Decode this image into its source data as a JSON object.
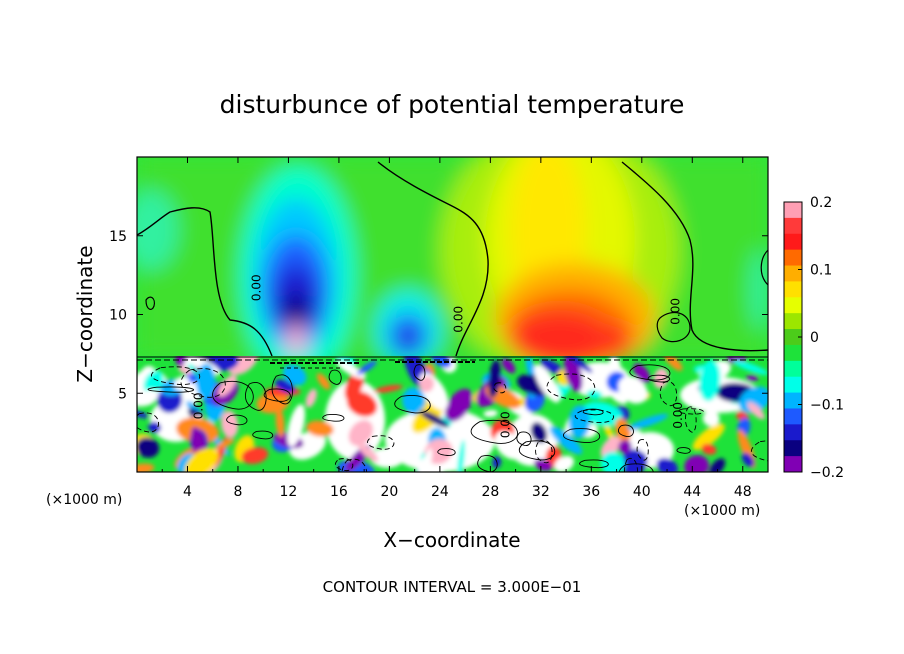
{
  "chart_data": {
    "type": "heatmap",
    "title": "disturbunce of potential temperature",
    "xlabel": "X−coordinate",
    "ylabel": "Z−coordinate",
    "x_unit_left": "(×1000 m)",
    "x_unit_right": "(×1000 m)",
    "footer": "CONTOUR INTERVAL = 3.000E−01",
    "xlim": [
      0,
      50
    ],
    "ylim": [
      0,
      20
    ],
    "x_ticks": [
      "4",
      "8",
      "12",
      "16",
      "20",
      "24",
      "28",
      "32",
      "36",
      "40",
      "44",
      "48"
    ],
    "x_tick_values": [
      4,
      8,
      12,
      16,
      20,
      24,
      28,
      32,
      36,
      40,
      44,
      48
    ],
    "y_ticks": [
      "5",
      "10",
      "15"
    ],
    "y_tick_values": [
      5,
      10,
      15
    ],
    "contour_labels": [
      {
        "text": "0.00",
        "x": 9.8,
        "z": 11.7
      },
      {
        "text": "0.00",
        "x": 25.8,
        "z": 9.7
      },
      {
        "text": "0.00",
        "x": 43.0,
        "z": 10.2
      },
      {
        "text": "0.00",
        "x": 5.2,
        "z": 4.2
      },
      {
        "text": "0.00",
        "x": 29.5,
        "z": 3.0
      },
      {
        "text": "0.00",
        "x": 43.2,
        "z": 3.6
      }
    ],
    "colorbar": {
      "min": -0.2,
      "max": 0.2,
      "ticks": [
        "0.2",
        "0.1",
        "0",
        "−0.1",
        "−0.2"
      ],
      "tick_values": [
        0.2,
        0.1,
        0,
        -0.1,
        -0.2
      ],
      "colors": [
        "#ff9fb4",
        "#ff3a3a",
        "#ff1a1a",
        "#ff6a00",
        "#ffae00",
        "#ffe000",
        "#e6ff00",
        "#9ce600",
        "#4ccc1a",
        "#1ee23a",
        "#00ff9a",
        "#00ffe8",
        "#00b4ff",
        "#1e5aff",
        "#1a1acc",
        "#0a0080",
        "#8000b4"
      ]
    },
    "upper_field": [
      {
        "x": 4,
        "z": 13,
        "value": 0.02
      },
      {
        "x": 12.5,
        "z": 11.5,
        "value": -0.16
      },
      {
        "x": 13,
        "z": 14.5,
        "value": -0.08
      },
      {
        "x": 21.5,
        "z": 9.5,
        "value": -0.12
      },
      {
        "x": 30,
        "z": 15,
        "value": 0.05
      },
      {
        "x": 32,
        "z": 10,
        "value": 0.14
      },
      {
        "x": 38,
        "z": 10.5,
        "value": 0.12
      },
      {
        "x": 47,
        "z": 14,
        "value": 0.02
      }
    ],
    "lower_layer_top_z": 7.4
  }
}
